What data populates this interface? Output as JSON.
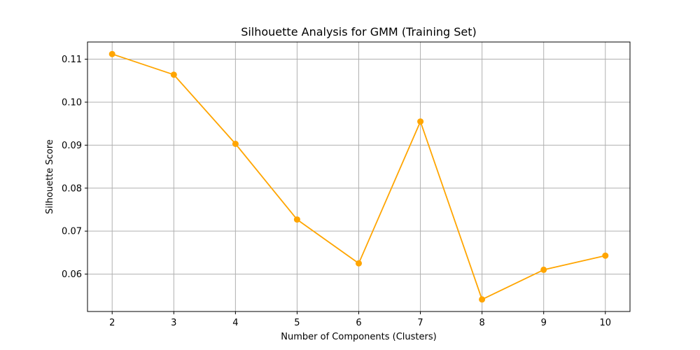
{
  "chart_data": {
    "type": "line",
    "title": "Silhouette Analysis for GMM (Training Set)",
    "xlabel": "Number of Components (Clusters)",
    "ylabel": "Silhouette Score",
    "x": [
      2,
      3,
      4,
      5,
      6,
      7,
      8,
      9,
      10
    ],
    "series": [
      {
        "values": [
          0.1112,
          0.1064,
          0.0903,
          0.0727,
          0.0625,
          0.0955,
          0.0541,
          0.061,
          0.0643
        ],
        "color": "#ffa500",
        "marker": "circle"
      }
    ],
    "xticks": [
      "2",
      "3",
      "4",
      "5",
      "6",
      "7",
      "8",
      "9",
      "10"
    ],
    "yticks": [
      "0.06",
      "0.07",
      "0.08",
      "0.09",
      "0.10",
      "0.11"
    ],
    "xlim": [
      1.6,
      10.4
    ],
    "ylim": [
      0.0513,
      0.114
    ],
    "grid": true,
    "legend": "none"
  }
}
